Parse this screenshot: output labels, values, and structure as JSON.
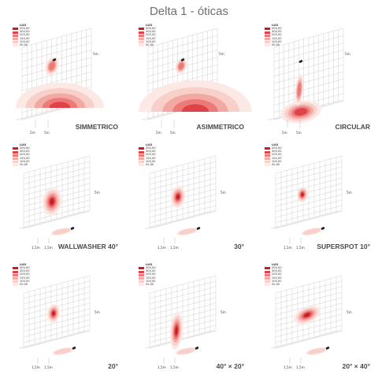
{
  "title": "Delta 1 - óticas",
  "legend": {
    "header": "LUX",
    "entries": [
      "500,00",
      "300,00",
      "200,00",
      "150,00",
      "100,00",
      "50,00"
    ],
    "colors": [
      "#c41f28",
      "#e0424a",
      "#ec7a78",
      "#f3a9a3",
      "#f8cfc9",
      "#fce9e6"
    ]
  },
  "panels": [
    {
      "label": "SIMMETRICO",
      "dims": [
        "5m",
        "5m",
        "5m"
      ]
    },
    {
      "label": "ASIMMETRICO",
      "dims": [
        "5m",
        "5m",
        "5m"
      ]
    },
    {
      "label": "CIRCULAR",
      "dims": [
        "5m",
        "5m",
        "5m"
      ]
    },
    {
      "label": "WALLWASHER 40°",
      "dims": [
        "5m",
        "1,5m",
        "1,5m"
      ]
    },
    {
      "label": "30°",
      "dims": [
        "5m",
        "1,5m",
        "1,5m"
      ]
    },
    {
      "label": "SUPERSPOT 10°",
      "dims": [
        "5m",
        "1,5m",
        "1,5m"
      ]
    },
    {
      "label": "20°",
      "dims": [
        "5m",
        "1,5m",
        "1,5m"
      ]
    },
    {
      "label": "40° × 20°",
      "dims": [
        "5m",
        "1,5m",
        "1,5m"
      ]
    },
    {
      "label": "20° × 40°",
      "dims": [
        "5m",
        "1,5m",
        "1,5m"
      ]
    }
  ]
}
